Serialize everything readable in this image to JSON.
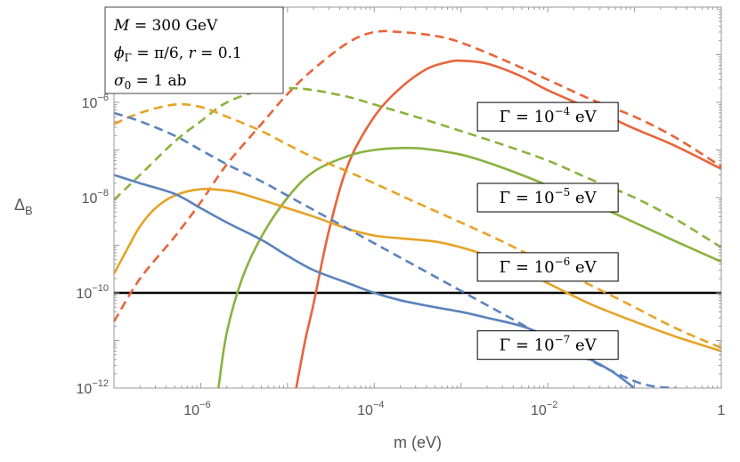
{
  "chart_data": {
    "type": "line",
    "title": "",
    "xlabel": "m (eV)",
    "ylabel_base": "Δ",
    "ylabel_sub": "B",
    "xscale": "log",
    "yscale": "log",
    "xlim": [
      1e-07,
      1
    ],
    "ylim": [
      1e-12,
      0.0001
    ],
    "x_ticks": [
      {
        "value": 1e-06,
        "base": "10",
        "exp": "−6"
      },
      {
        "value": 0.0001,
        "base": "10",
        "exp": "−4"
      },
      {
        "value": 0.01,
        "base": "10",
        "exp": "−2"
      },
      {
        "value": 1,
        "base": "1",
        "exp": ""
      }
    ],
    "y_ticks": [
      {
        "value": 1e-06,
        "base": "10",
        "exp": "−6"
      },
      {
        "value": 1e-08,
        "base": "10",
        "exp": "−8"
      },
      {
        "value": 1e-10,
        "base": "10",
        "exp": "−10"
      },
      {
        "value": 1e-12,
        "base": "10",
        "exp": "−12"
      }
    ],
    "params_box": {
      "line1": {
        "var": "M",
        "rest": " = 300 GeV"
      },
      "line2": {
        "var": "ϕ",
        "sub": "Γ",
        "mid": " = π/6,  ",
        "var2": "r",
        "rest": " = 0.1"
      },
      "line3": {
        "var": "σ",
        "sub": "0",
        "rest": " = 1 ab"
      }
    },
    "reference_line": {
      "y": 1e-10,
      "color": "#000000"
    },
    "series": [
      {
        "name": "Γ = 10⁻⁴ eV",
        "label_pre": "Γ = 10",
        "label_exp": "−4",
        "label_post": " eV",
        "label_at": [
          0.01,
          5e-07
        ],
        "color": "#E8643A",
        "solid": {
          "x": [
            1.26e-05,
            1.6e-05,
            2e-05,
            3e-05,
            5e-05,
            0.0001,
            0.0002,
            0.0004,
            0.0007,
            0.001,
            0.002,
            0.005,
            0.01,
            0.05,
            0.1,
            0.3,
            1
          ],
          "y": [
            1e-12,
            1e-11,
            6e-11,
            2e-09,
            5e-08,
            5e-07,
            2e-06,
            5e-06,
            7e-06,
            7.5e-06,
            6.5e-06,
            3.5e-06,
            1.8e-06,
            5e-07,
            2.8e-07,
            1.2e-07,
            4e-08
          ]
        },
        "dashed": {
          "x": [
            1e-07,
            2e-07,
            5e-07,
            1e-06,
            2e-06,
            5e-06,
            1e-05,
            2e-05,
            5e-05,
            0.0001,
            0.0002,
            0.0005,
            0.001,
            0.003,
            0.01,
            0.03,
            0.1,
            0.3,
            1
          ],
          "y": [
            2.5e-11,
            2e-10,
            1.5e-09,
            8e-09,
            5e-08,
            3.5e-07,
            1.5e-06,
            5e-06,
            1.8e-05,
            3e-05,
            3e-05,
            2.5e-05,
            1.8e-05,
            8e-06,
            3e-06,
            1.2e-06,
            5e-07,
            1.8e-07,
            4.5e-08
          ]
        }
      },
      {
        "name": "Γ = 10⁻⁵ eV",
        "label_pre": "Γ = 10",
        "label_exp": "−5",
        "label_post": " eV",
        "label_at": [
          0.01,
          1e-08
        ],
        "color": "#8AB23E",
        "solid": {
          "x": [
            1.6e-06,
            2e-06,
            3e-06,
            5e-06,
            1e-05,
            2e-05,
            5e-05,
            0.0001,
            0.0002,
            0.0004,
            0.001,
            0.002,
            0.005,
            0.01,
            0.03,
            0.1,
            0.3,
            1
          ],
          "y": [
            1e-12,
            1.5e-11,
            2e-10,
            1.5e-09,
            1e-08,
            3.5e-08,
            7.5e-08,
            1e-07,
            1.1e-07,
            1.05e-07,
            8e-08,
            5.5e-08,
            3e-08,
            1.8e-08,
            8e-09,
            3e-09,
            1.2e-09,
            4.5e-10
          ]
        },
        "dashed": {
          "x": [
            1e-07,
            2e-07,
            5e-07,
            1e-06,
            2e-06,
            5e-06,
            1e-05,
            2e-05,
            5e-05,
            0.0001,
            0.0003,
            0.001,
            0.003,
            0.01,
            0.03,
            0.1,
            0.3,
            1
          ],
          "y": [
            9e-09,
            3e-08,
            1.5e-07,
            4e-07,
            1e-06,
            1.8e-06,
            2e-06,
            1.8e-06,
            1.3e-06,
            9e-07,
            5e-07,
            2.5e-07,
            1.3e-07,
            6e-08,
            2.5e-08,
            1e-08,
            3.5e-09,
            9e-10
          ]
        }
      },
      {
        "name": "Γ = 10⁻⁶ eV",
        "label_pre": "Γ = 10",
        "label_exp": "−6",
        "label_post": " eV",
        "label_at": [
          0.01,
          3.5e-10
        ],
        "color": "#E6A326",
        "solid": {
          "x": [
            1e-07,
            1.5e-07,
            2e-07,
            3e-07,
            5e-07,
            1e-06,
            2e-06,
            3e-06,
            5e-06,
            1e-05,
            2e-05,
            5e-05,
            0.0001,
            0.0002,
            0.0005,
            0.001,
            0.002,
            0.005,
            0.01,
            0.03,
            0.1,
            0.3,
            1
          ],
          "y": [
            2.5e-10,
            1e-09,
            2.5e-09,
            6e-09,
            1.1e-08,
            1.5e-08,
            1.4e-08,
            1.2e-08,
            9e-09,
            6e-09,
            4e-09,
            2.2e-09,
            1.6e-09,
            1.4e-09,
            1.2e-09,
            9e-10,
            6e-10,
            3e-10,
            1.6e-10,
            6e-11,
            2.5e-11,
            1.2e-11,
            6e-12
          ]
        },
        "dashed": {
          "x": [
            1e-07,
            2e-07,
            5e-07,
            1e-06,
            2e-06,
            5e-06,
            1e-05,
            2e-05,
            5e-05,
            0.0001,
            0.0003,
            0.001,
            0.003,
            0.01,
            0.03,
            0.1,
            0.3,
            1
          ],
          "y": [
            3.5e-07,
            6e-07,
            9e-07,
            8e-07,
            5e-07,
            2.5e-07,
            1.3e-07,
            7e-08,
            3.5e-08,
            2e-08,
            8e-09,
            3e-09,
            1.2e-09,
            4e-10,
            1.5e-10,
            5e-11,
            1.8e-11,
            7e-12
          ]
        }
      },
      {
        "name": "Γ = 10⁻⁷ eV",
        "label_pre": "Γ = 10",
        "label_exp": "−7",
        "label_post": " eV",
        "label_at": [
          0.01,
          8e-12
        ],
        "color": "#5B82BC",
        "solid": {
          "x": [
            1e-07,
            2e-07,
            5e-07,
            1e-06,
            2e-06,
            5e-06,
            1e-05,
            2e-05,
            5e-05,
            0.0001,
            0.0002,
            0.0005,
            0.001,
            0.002,
            0.005,
            0.01,
            0.02,
            0.05,
            0.1
          ],
          "y": [
            3e-08,
            2e-08,
            1.2e-08,
            6e-09,
            3e-09,
            1.3e-09,
            6e-10,
            3e-10,
            1.6e-10,
            1e-10,
            7e-11,
            5e-11,
            4e-11,
            3e-11,
            2e-11,
            1.2e-11,
            6e-12,
            2.5e-12,
            1e-12
          ]
        },
        "dashed": {
          "x": [
            1e-07,
            2e-07,
            5e-07,
            1e-06,
            2e-06,
            5e-06,
            1e-05,
            2e-05,
            5e-05,
            0.0001,
            0.0002,
            0.0005,
            0.001,
            0.002,
            0.005,
            0.01,
            0.1,
            0.3
          ],
          "y": [
            6e-07,
            4e-07,
            2e-07,
            1e-07,
            5e-08,
            2.2e-08,
            1.1e-08,
            5.5e-09,
            2.2e-09,
            1.1e-09,
            5.5e-10,
            2.2e-10,
            1.1e-10,
            5.5e-11,
            2.2e-11,
            1.1e-11,
            1.4e-12,
            1e-12
          ]
        }
      }
    ]
  }
}
